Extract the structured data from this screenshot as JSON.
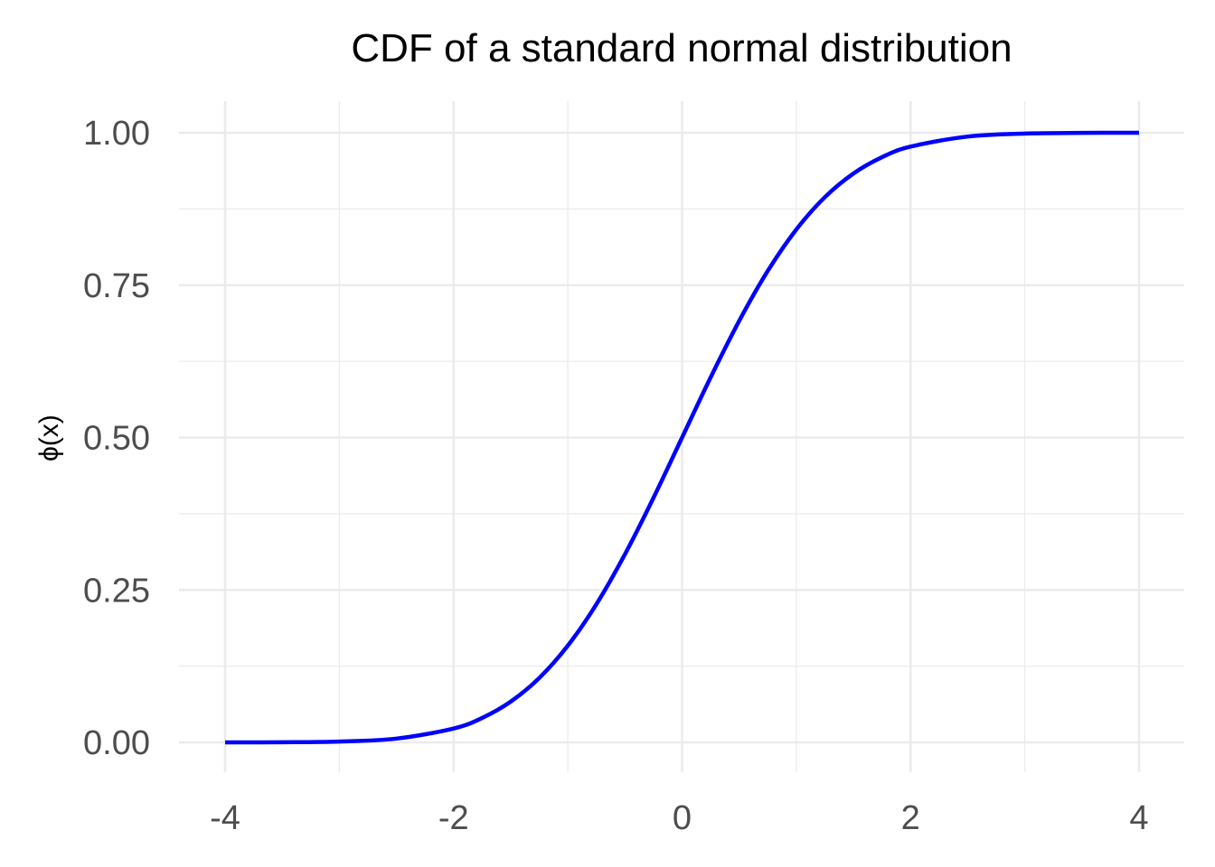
{
  "chart_data": {
    "type": "line",
    "title": "CDF of a standard normal distribution",
    "xlabel": "",
    "ylabel": "ϕ(x)",
    "xlim": [
      -4,
      4
    ],
    "ylim": [
      0,
      1
    ],
    "x_ticks": [
      -4,
      -2,
      0,
      2,
      4
    ],
    "x_tick_labels": [
      "-4",
      "-2",
      "0",
      "2",
      "4"
    ],
    "y_ticks": [
      0,
      0.25,
      0.5,
      0.75,
      1
    ],
    "y_tick_labels": [
      "0.00",
      "0.25",
      "0.50",
      "0.75",
      "1.00"
    ],
    "grid": true,
    "legend": "none",
    "series": [
      {
        "color": "#0000ff",
        "x": [
          -4,
          -3.5,
          -3,
          -2.5,
          -2,
          -1.75,
          -1.5,
          -1.25,
          -1,
          -0.75,
          -0.5,
          -0.25,
          0,
          0.25,
          0.5,
          0.75,
          1,
          1.25,
          1.5,
          1.75,
          2,
          2.5,
          3,
          3.5,
          4
        ],
        "y": [
          3e-05,
          0.00023,
          0.00135,
          0.00621,
          0.02275,
          0.04006,
          0.06681,
          0.10565,
          0.15866,
          0.22663,
          0.30854,
          0.40129,
          0.5,
          0.59871,
          0.69146,
          0.77337,
          0.84134,
          0.89435,
          0.93319,
          0.95994,
          0.97725,
          0.99379,
          0.99865,
          0.99977,
          0.99997
        ]
      }
    ]
  },
  "colors": {
    "background": "#ffffff",
    "grid": "#ebebeb",
    "line": "#0000ff",
    "tick_text": "#4d4d4d",
    "title_text": "#000000"
  }
}
